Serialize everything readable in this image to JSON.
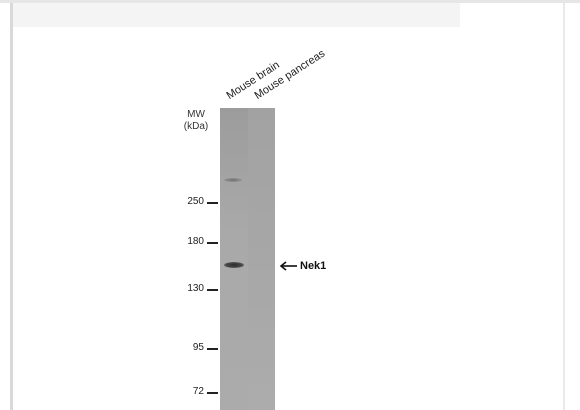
{
  "lanes": {
    "lane1": "Mouse brain",
    "lane2": "Mouse pancreas"
  },
  "mw_header": {
    "line1": "MW",
    "line2": "(kDa)"
  },
  "markers": [
    "250",
    "180",
    "130",
    "95",
    "72"
  ],
  "target": {
    "label": "Nek1",
    "arrow_icon": "left-arrow-icon"
  },
  "colors": {
    "membrane": "#a9a9a9",
    "band": "#2b2b2b",
    "text": "#222222"
  }
}
